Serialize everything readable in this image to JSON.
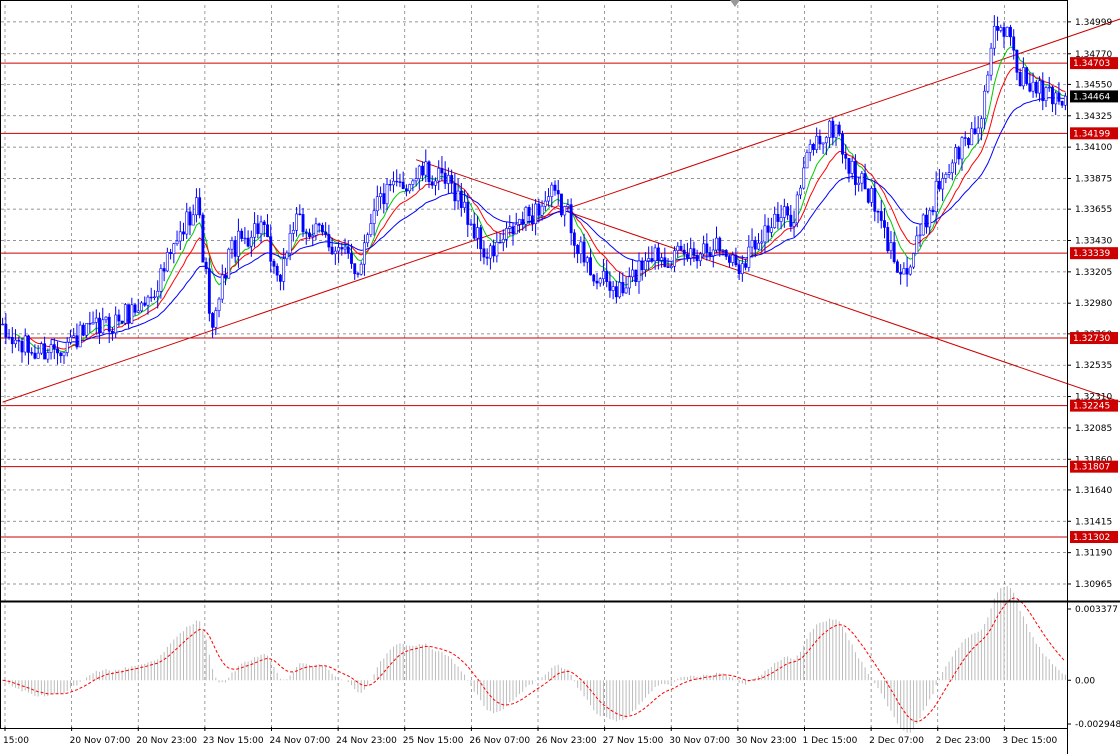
{
  "chart_data": {
    "type": "line",
    "instrument_note": "",
    "price_axis": {
      "range": [
        1.3085,
        1.3512
      ],
      "ticks": [
        "1.34999",
        "1.34770",
        "1.34550",
        "1.34325",
        "1.34100",
        "1.33875",
        "1.33655",
        "1.33430",
        "1.33205",
        "1.32980",
        "1.32760",
        "1.32535",
        "1.32310",
        "1.32085",
        "1.31860",
        "1.31640",
        "1.31415",
        "1.31190",
        "1.30965"
      ],
      "current_price": "1.34464"
    },
    "time_axis": {
      "labels": [
        "15:00",
        "20 Nov 07:00",
        "20 Nov 23:00",
        "23 Nov 15:00",
        "24 Nov 07:00",
        "24 Nov 23:00",
        "25 Nov 15:00",
        "26 Nov 07:00",
        "26 Nov 23:00",
        "27 Nov 15:00",
        "30 Nov 07:00",
        "30 Nov 23:00",
        "1 Dec 15:00",
        "2 Dec 07:00",
        "2 Dec 23:00",
        "3 Dec 15:00"
      ],
      "bar_count": 330
    },
    "horizontal_levels": [
      "1.34703",
      "1.34199",
      "1.33339",
      "1.32730",
      "1.32245",
      "1.31807",
      "1.31302"
    ],
    "trend_lines": [
      {
        "from": [
          0,
          1.3227
        ],
        "to": [
          346,
          1.3502
        ]
      },
      {
        "from": [
          128,
          1.3401
        ],
        "to": [
          350,
          1.3224
        ]
      }
    ],
    "price_path": [
      [
        0,
        1.3275
      ],
      [
        10,
        1.3262
      ],
      [
        20,
        1.327
      ],
      [
        35,
        1.3285
      ],
      [
        45,
        1.33
      ],
      [
        55,
        1.3345
      ],
      [
        60,
        1.3375
      ],
      [
        65,
        1.3275
      ],
      [
        70,
        1.3335
      ],
      [
        80,
        1.3355
      ],
      [
        85,
        1.331
      ],
      [
        90,
        1.3355
      ],
      [
        100,
        1.3345
      ],
      [
        110,
        1.3322
      ],
      [
        115,
        1.337
      ],
      [
        125,
        1.3385
      ],
      [
        130,
        1.3392
      ],
      [
        140,
        1.338
      ],
      [
        150,
        1.333
      ],
      [
        160,
        1.3355
      ],
      [
        170,
        1.3375
      ],
      [
        175,
        1.3362
      ],
      [
        180,
        1.3328
      ],
      [
        186,
        1.3312
      ],
      [
        192,
        1.3305
      ],
      [
        200,
        1.3335
      ],
      [
        210,
        1.333
      ],
      [
        220,
        1.3342
      ],
      [
        228,
        1.3325
      ],
      [
        235,
        1.335
      ],
      [
        245,
        1.3363
      ],
      [
        250,
        1.341
      ],
      [
        258,
        1.3425
      ],
      [
        262,
        1.3395
      ],
      [
        268,
        1.3378
      ],
      [
        275,
        1.3335
      ],
      [
        280,
        1.332
      ],
      [
        290,
        1.3385
      ],
      [
        296,
        1.3408
      ],
      [
        302,
        1.3425
      ],
      [
        307,
        1.3488
      ],
      [
        312,
        1.3495
      ],
      [
        314,
        1.3465
      ],
      [
        320,
        1.345
      ],
      [
        328,
        1.3446
      ]
    ],
    "series": [
      {
        "name": "",
        "color": "#00cc00",
        "period": 8
      },
      {
        "name": "",
        "color": "#ff0000",
        "period": 14
      },
      {
        "name": "",
        "color": "#0000ff",
        "period": 30
      }
    ],
    "oscillator": {
      "axis_labels": [
        "0.003377",
        "0.00",
        "-0.002948"
      ],
      "range": [
        -0.003377,
        0.003377
      ],
      "signal_color": "#ff0000"
    },
    "colors": {
      "candle": "#0000ff",
      "grid": "#000000",
      "level": "#cc0000"
    }
  }
}
